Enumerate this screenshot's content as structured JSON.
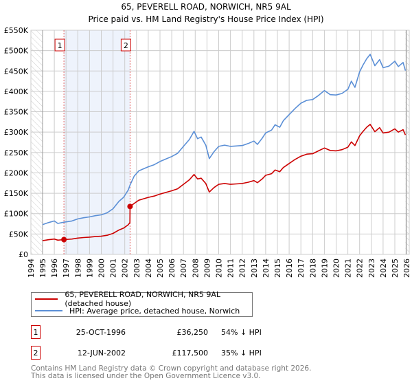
{
  "chart_data": {
    "type": "line",
    "title": "65, PEVERELL ROAD, NORWICH, NR5 9AL",
    "subtitle": "Price paid vs. HM Land Registry's House Price Index (HPI)",
    "xlim": [
      1994,
      2026
    ],
    "ylim": [
      0,
      550000
    ],
    "x_ticks": [
      "1994",
      "1995",
      "1996",
      "1997",
      "1998",
      "1999",
      "2000",
      "2001",
      "2002",
      "2003",
      "2004",
      "2005",
      "2006",
      "2007",
      "2008",
      "2009",
      "2010",
      "2011",
      "2012",
      "2013",
      "2014",
      "2015",
      "2016",
      "2017",
      "2018",
      "2019",
      "2020",
      "2021",
      "2022",
      "2023",
      "2024",
      "2025",
      "2026"
    ],
    "y_ticks": [
      {
        "v": 0,
        "label": "£0"
      },
      {
        "v": 50000,
        "label": "£50K"
      },
      {
        "v": 100000,
        "label": "£100K"
      },
      {
        "v": 150000,
        "label": "£150K"
      },
      {
        "v": 200000,
        "label": "£200K"
      },
      {
        "v": 250000,
        "label": "£250K"
      },
      {
        "v": 300000,
        "label": "£300K"
      },
      {
        "v": 350000,
        "label": "£350K"
      },
      {
        "v": 400000,
        "label": "£400K"
      },
      {
        "v": 450000,
        "label": "£450K"
      },
      {
        "v": 500000,
        "label": "£500K"
      },
      {
        "v": 550000,
        "label": "£550K"
      }
    ],
    "grid": true,
    "data_range": [
      1995,
      2025.9
    ],
    "series": [
      {
        "name": "65, PEVERELL ROAD, NORWICH, NR5 9AL (detached house)",
        "color": "#cc0000",
        "unit": "£K",
        "points": [
          [
            1995.0,
            33.6
          ],
          [
            1995.5,
            35.9
          ],
          [
            1996.0,
            37.7
          ],
          [
            1996.3,
            35.0
          ],
          [
            1996.82,
            36.25
          ],
          [
            1997.5,
            37.7
          ],
          [
            1998.0,
            40.0
          ],
          [
            1998.5,
            41.4
          ],
          [
            1999.0,
            42.3
          ],
          [
            1999.5,
            43.7
          ],
          [
            2000.0,
            44.6
          ],
          [
            2000.5,
            46.9
          ],
          [
            2001.0,
            51.5
          ],
          [
            2001.5,
            59.8
          ],
          [
            2001.9,
            64.4
          ],
          [
            2002.3,
            72.7
          ],
          [
            2002.44,
            78
          ],
          [
            2002.45,
            117.5
          ],
          [
            2002.8,
            125
          ],
          [
            2003.2,
            133
          ],
          [
            2003.6,
            136.5
          ],
          [
            2004.0,
            139.8
          ],
          [
            2004.5,
            143
          ],
          [
            2005.0,
            148
          ],
          [
            2005.5,
            152
          ],
          [
            2006.0,
            156
          ],
          [
            2006.5,
            161
          ],
          [
            2007.0,
            172
          ],
          [
            2007.5,
            183
          ],
          [
            2007.9,
            196
          ],
          [
            2008.2,
            185
          ],
          [
            2008.5,
            187
          ],
          [
            2008.9,
            174
          ],
          [
            2009.2,
            153
          ],
          [
            2009.6,
            164
          ],
          [
            2010.0,
            172
          ],
          [
            2010.5,
            174
          ],
          [
            2011.0,
            172
          ],
          [
            2011.5,
            173
          ],
          [
            2012.0,
            174
          ],
          [
            2012.5,
            177
          ],
          [
            2013.0,
            181
          ],
          [
            2013.3,
            176
          ],
          [
            2013.7,
            185
          ],
          [
            2014.0,
            194
          ],
          [
            2014.5,
            198
          ],
          [
            2014.8,
            207
          ],
          [
            2015.2,
            203
          ],
          [
            2015.5,
            213
          ],
          [
            2016.0,
            223
          ],
          [
            2016.5,
            233
          ],
          [
            2017.0,
            241
          ],
          [
            2017.5,
            246
          ],
          [
            2018.0,
            247
          ],
          [
            2018.5,
            254
          ],
          [
            2019.0,
            261
          ],
          [
            2019.5,
            255
          ],
          [
            2020.0,
            254
          ],
          [
            2020.5,
            257
          ],
          [
            2021.0,
            263
          ],
          [
            2021.3,
            276
          ],
          [
            2021.6,
            267
          ],
          [
            2022.0,
            291
          ],
          [
            2022.3,
            302
          ],
          [
            2022.6,
            312
          ],
          [
            2022.9,
            319
          ],
          [
            2023.3,
            301
          ],
          [
            2023.7,
            311
          ],
          [
            2024.0,
            298
          ],
          [
            2024.5,
            300
          ],
          [
            2025.0,
            308
          ],
          [
            2025.3,
            300
          ],
          [
            2025.7,
            306
          ],
          [
            2025.9,
            293
          ]
        ]
      },
      {
        "name": "HPI: Average price, detached house, Norwich",
        "color": "#5b8fd6",
        "unit": "£K",
        "points": [
          [
            1995.0,
            73
          ],
          [
            1995.5,
            78
          ],
          [
            1996.0,
            82
          ],
          [
            1996.3,
            76
          ],
          [
            1996.82,
            79
          ],
          [
            1997.5,
            82
          ],
          [
            1998.0,
            87
          ],
          [
            1998.5,
            90
          ],
          [
            1999.0,
            92
          ],
          [
            1999.5,
            95
          ],
          [
            2000.0,
            97
          ],
          [
            2000.5,
            102
          ],
          [
            2001.0,
            112
          ],
          [
            2001.5,
            130
          ],
          [
            2001.9,
            140
          ],
          [
            2002.3,
            158
          ],
          [
            2002.45,
            170
          ],
          [
            2002.8,
            192
          ],
          [
            2003.2,
            205
          ],
          [
            2003.6,
            210
          ],
          [
            2004.0,
            215
          ],
          [
            2004.5,
            220
          ],
          [
            2005.0,
            228
          ],
          [
            2005.5,
            234
          ],
          [
            2006.0,
            240
          ],
          [
            2006.5,
            248
          ],
          [
            2007.0,
            265
          ],
          [
            2007.5,
            282
          ],
          [
            2007.9,
            302
          ],
          [
            2008.2,
            284
          ],
          [
            2008.5,
            288
          ],
          [
            2008.9,
            268
          ],
          [
            2009.2,
            235
          ],
          [
            2009.6,
            252
          ],
          [
            2010.0,
            265
          ],
          [
            2010.5,
            268
          ],
          [
            2011.0,
            265
          ],
          [
            2011.5,
            266
          ],
          [
            2012.0,
            267
          ],
          [
            2012.5,
            272
          ],
          [
            2013.0,
            278
          ],
          [
            2013.3,
            270
          ],
          [
            2013.7,
            285
          ],
          [
            2014.0,
            298
          ],
          [
            2014.5,
            305
          ],
          [
            2014.8,
            318
          ],
          [
            2015.2,
            312
          ],
          [
            2015.5,
            328
          ],
          [
            2016.0,
            343
          ],
          [
            2016.5,
            358
          ],
          [
            2017.0,
            371
          ],
          [
            2017.5,
            378
          ],
          [
            2018.0,
            380
          ],
          [
            2018.5,
            390
          ],
          [
            2019.0,
            402
          ],
          [
            2019.5,
            392
          ],
          [
            2020.0,
            391
          ],
          [
            2020.5,
            395
          ],
          [
            2021.0,
            405
          ],
          [
            2021.3,
            425
          ],
          [
            2021.6,
            410
          ],
          [
            2022.0,
            448
          ],
          [
            2022.3,
            465
          ],
          [
            2022.6,
            480
          ],
          [
            2022.9,
            491
          ],
          [
            2023.3,
            463
          ],
          [
            2023.7,
            478
          ],
          [
            2024.0,
            458
          ],
          [
            2024.5,
            462
          ],
          [
            2025.0,
            474
          ],
          [
            2025.3,
            461
          ],
          [
            2025.7,
            471
          ],
          [
            2025.9,
            451
          ]
        ]
      }
    ],
    "sales": [
      {
        "id": "1",
        "x": 1996.82,
        "value": 36250,
        "date": "25-OCT-1996",
        "price": "£36,250",
        "hpi": "54% ↓ HPI"
      },
      {
        "id": "2",
        "x": 2002.45,
        "value": 117500,
        "date": "12-JUN-2002",
        "price": "£117,500",
        "hpi": "35% ↓ HPI"
      }
    ],
    "legend_position": "below"
  },
  "footer": {
    "line1": "Contains HM Land Registry data © Crown copyright and database right 2026.",
    "line2": "This data is licensed under the Open Government Licence v3.0."
  },
  "colors": {
    "property": "#cc0000",
    "hpi": "#5b8fd6",
    "band": "#eef3fc",
    "grid": "#cccccc"
  }
}
